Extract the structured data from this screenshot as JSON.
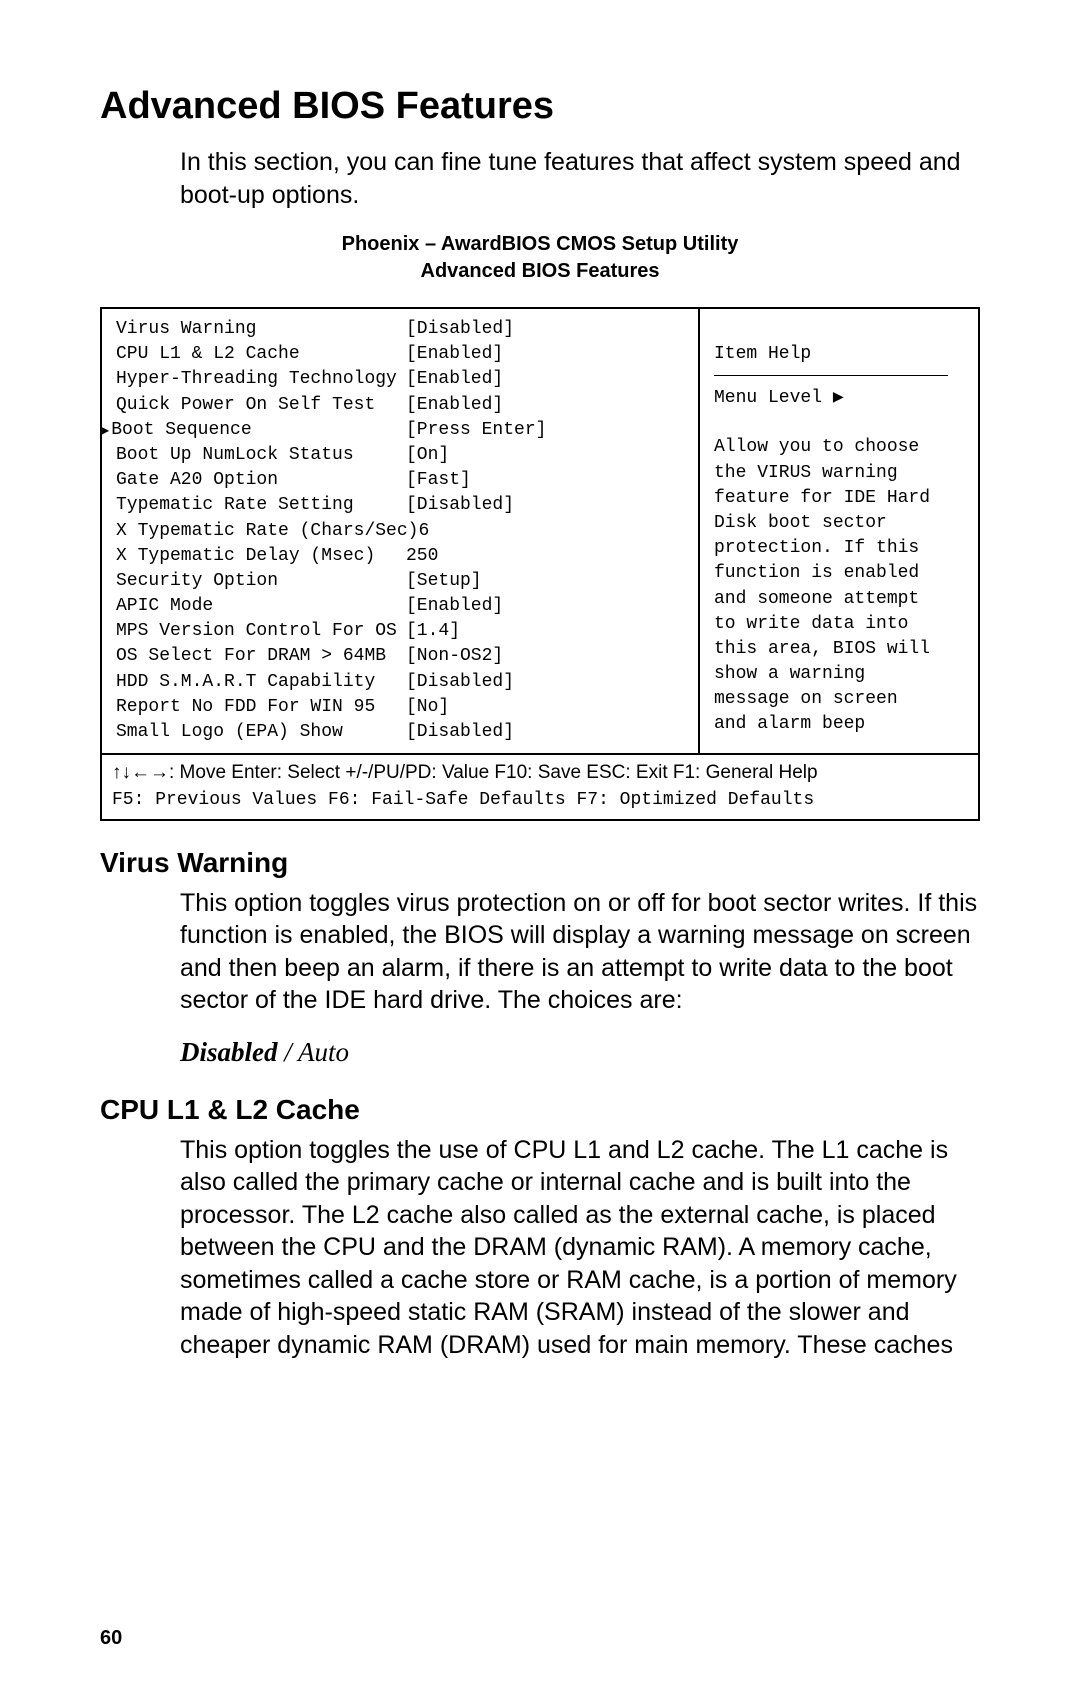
{
  "title": "Advanced BIOS Features",
  "intro": "In this section, you can fine tune features that affect system speed and boot-up options.",
  "bios_header_line1": "Phoenix – AwardBIOS CMOS Setup Utility",
  "bios_header_line2": "Advanced BIOS Features",
  "bios": {
    "rows": [
      {
        "label": "Virus Warning",
        "value": "[Disabled]",
        "marker": false,
        "indent": false
      },
      {
        "label": "CPU L1 & L2 Cache",
        "value": "[Enabled]",
        "marker": false,
        "indent": false
      },
      {
        "label": "Hyper-Threading Technology",
        "value": "[Enabled]",
        "marker": false,
        "indent": false
      },
      {
        "label": "Quick Power On Self Test",
        "value": "[Enabled]",
        "marker": false,
        "indent": false
      },
      {
        "label": "Boot Sequence",
        "value": "[Press Enter]",
        "marker": true,
        "indent": false
      },
      {
        "label": "Boot Up NumLock Status",
        "value": "[On]",
        "marker": false,
        "indent": false
      },
      {
        "label": "Gate A20 Option",
        "value": "[Fast]",
        "marker": false,
        "indent": false
      },
      {
        "label": "Typematic Rate Setting",
        "value": "[Disabled]",
        "marker": false,
        "indent": false
      },
      {
        "label": "X Typematic Rate (Chars/Sec)",
        "value": "6",
        "marker": false,
        "indent": false
      },
      {
        "label": "X Typematic Delay (Msec)",
        "value": "250",
        "marker": false,
        "indent": false
      },
      {
        "label": "Security Option",
        "value": "[Setup]",
        "marker": false,
        "indent": false
      },
      {
        "label": "APIC Mode",
        "value": "[Enabled]",
        "marker": false,
        "indent": false
      },
      {
        "label": "MPS Version Control For OS",
        "value": "[1.4]",
        "marker": false,
        "indent": false
      },
      {
        "label": "OS Select For DRAM > 64MB",
        "value": "[Non-OS2]",
        "marker": false,
        "indent": false
      },
      {
        "label": "HDD S.M.A.R.T Capability",
        "value": "[Disabled]",
        "marker": false,
        "indent": false
      },
      {
        "label": "Report No FDD For WIN 95",
        "value": "[No]",
        "marker": false,
        "indent": false
      },
      {
        "label": "Small Logo (EPA) Show",
        "value": "[Disabled]",
        "marker": false,
        "indent": false
      }
    ],
    "help_title": "Item Help",
    "menu_level_label": "Menu Level  ▶",
    "help_lines": [
      "Allow you to choose",
      "the VIRUS warning",
      "feature for IDE Hard",
      "Disk boot sector",
      "protection. If this",
      "function is enabled",
      "and someone attempt",
      "to write data into",
      "this area, BIOS will",
      "show a warning",
      "message on screen",
      "and alarm beep"
    ],
    "nav1": "↑↓←→: Move  Enter: Select  +/-/PU/PD: Value  F10: Save  ESC: Exit  F1: General Help",
    "nav2": "F5: Previous Values  F6: Fail-Safe Defaults  F7: Optimized Defaults"
  },
  "sections": [
    {
      "heading": "Virus Warning",
      "body": "This option toggles virus protection on or off for boot sector writes. If this function is enabled, the BIOS will display a warning message on screen and then beep an alarm, if there is an attempt to write data to the boot sector of the IDE hard drive. The choices are:",
      "choice_bold": "Disabled",
      "choice_sep": " / ",
      "choice_italic": "Auto"
    },
    {
      "heading": "CPU L1 & L2 Cache",
      "body": "This option toggles the use of CPU L1 and L2 cache. The L1 cache is also called the primary cache or internal cache and is built into the processor. The L2 cache also called as the external cache, is placed between the CPU and the DRAM (dynamic RAM). A memory cache, sometimes called a cache store or RAM cache, is a portion of memory made of high-speed static RAM (SRAM) instead of the slower and cheaper dynamic RAM (DRAM) used for main memory. These caches"
    }
  ],
  "page_number": "60"
}
